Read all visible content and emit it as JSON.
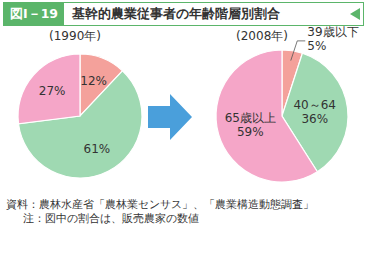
{
  "figure_number": "図Ⅰ－19",
  "title": "基幹的農業従事者の年齢階層別割合",
  "source": "資料：農林水産省「農林業センサス」、「農業構造動態調査」",
  "note": "注：図中の割合は、販売農家の数値",
  "chart_data": [
    {
      "type": "pie",
      "title": "(1990年)",
      "categories": [
        null,
        null,
        null
      ],
      "values": [
        12,
        61,
        27
      ],
      "value_labels": [
        "12%",
        "61%",
        "27%"
      ],
      "colors": [
        "#f4a19b",
        "#9fd9b2",
        "#f5a6c8"
      ],
      "data_labels": true
    },
    {
      "type": "pie",
      "title": "(2008年)",
      "categories": [
        "39歳以下",
        "40～64",
        "65歳以上"
      ],
      "values": [
        5,
        36,
        59
      ],
      "value_labels": [
        "5%",
        "36%",
        "59%"
      ],
      "colors": [
        "#f4a19b",
        "#9fd9b2",
        "#f5a6c8"
      ],
      "data_labels": true
    }
  ]
}
